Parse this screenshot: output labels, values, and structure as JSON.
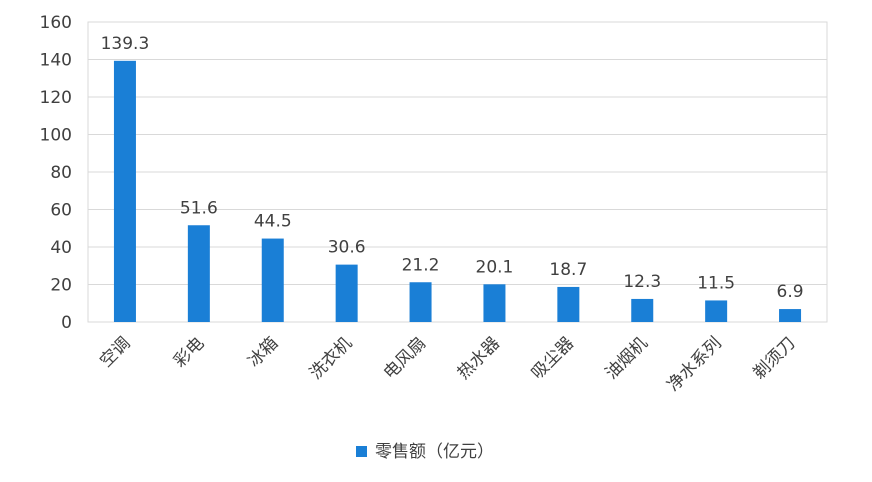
{
  "chart_data": {
    "type": "bar",
    "categories": [
      "空调",
      "彩电",
      "冰箱",
      "洗衣机",
      "电风扇",
      "热水器",
      "吸尘器",
      "油烟机",
      "净水系列",
      "剃须刀"
    ],
    "series": [
      {
        "name": "零售额（亿元）",
        "values": [
          139.3,
          51.6,
          44.5,
          30.6,
          21.2,
          20.1,
          18.7,
          12.3,
          11.5,
          6.9
        ]
      }
    ],
    "data_labels": [
      "139.3",
      "51.6",
      "44.5",
      "30.6",
      "21.2",
      "20.1",
      "18.7",
      "12.3",
      "11.5",
      "6.9"
    ],
    "ylim": [
      0,
      160
    ],
    "yticks": [
      0,
      20,
      40,
      60,
      80,
      100,
      120,
      140,
      160
    ],
    "grid": true,
    "legend_position": "bottom",
    "colors": {
      "bar": "#1a7fd6",
      "grid": "#d9d9d9",
      "text": "#404040"
    }
  }
}
